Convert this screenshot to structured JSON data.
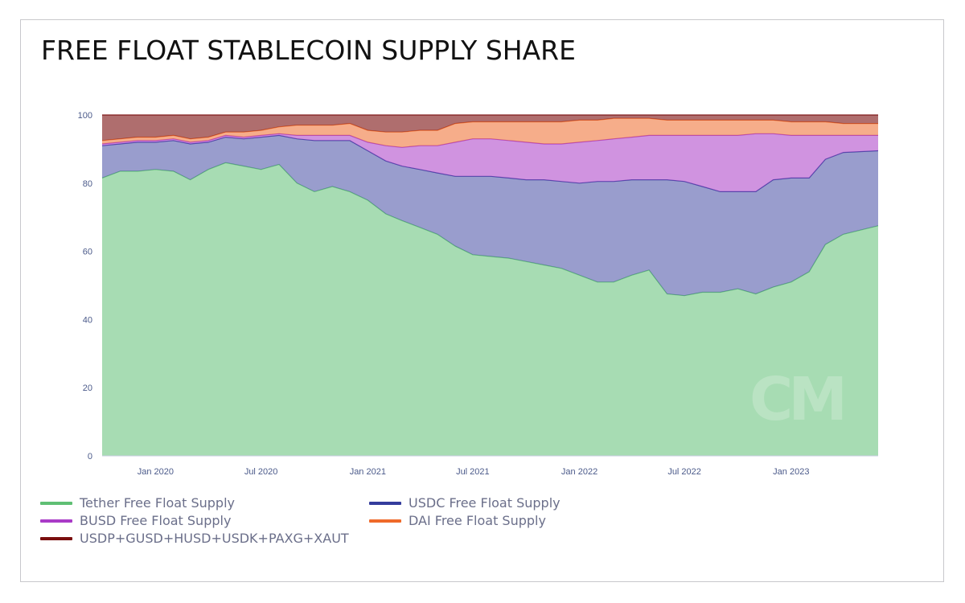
{
  "page": {
    "title": "FREE FLOAT STABLECOIN SUPPLY SHARE"
  },
  "watermark": "CM",
  "colors": {
    "tether": "#5fbf74",
    "usdc": "#343c9c",
    "busd": "#a93bc7",
    "dai": "#ef6a2a",
    "others": "#7a0e0e",
    "axis_text": "#4b5a8a"
  },
  "chart_data": {
    "type": "area",
    "stacked": true,
    "normalized_percent": true,
    "x": [
      "2019-10-01",
      "2019-11-01",
      "2019-12-01",
      "2020-01-01",
      "2020-02-01",
      "2020-03-01",
      "2020-04-01",
      "2020-05-01",
      "2020-06-01",
      "2020-07-01",
      "2020-08-01",
      "2020-09-01",
      "2020-10-01",
      "2020-11-01",
      "2020-12-01",
      "2021-01-01",
      "2021-02-01",
      "2021-03-01",
      "2021-04-01",
      "2021-05-01",
      "2021-06-01",
      "2021-07-01",
      "2021-08-01",
      "2021-09-01",
      "2021-10-01",
      "2021-11-01",
      "2021-12-01",
      "2022-01-01",
      "2022-02-01",
      "2022-03-01",
      "2022-04-01",
      "2022-05-01",
      "2022-06-01",
      "2022-07-01",
      "2022-08-01",
      "2022-09-01",
      "2022-10-01",
      "2022-11-01",
      "2022-12-01",
      "2023-01-01",
      "2023-02-01",
      "2023-03-01",
      "2023-04-01",
      "2023-05-01"
    ],
    "series": [
      {
        "name": "Tether Free Float Supply",
        "key": "tether",
        "values": [
          81.5,
          83.5,
          83.5,
          84.0,
          83.5,
          81.0,
          84.0,
          86.0,
          85.0,
          84.0,
          85.5,
          80.0,
          77.5,
          79.0,
          77.5,
          75.0,
          71.0,
          69.0,
          67.0,
          65.0,
          61.5,
          59.0,
          58.5,
          58.0,
          57.0,
          56.0,
          55.0,
          53.0,
          51.0,
          51.0,
          53.0,
          54.5,
          47.5,
          47.0,
          48.0,
          48.0,
          49.0,
          47.5,
          49.5,
          51.0,
          54.0,
          62.0,
          65.0,
          67.5
        ]
      },
      {
        "name": "USDC Free Float Supply",
        "key": "usdc",
        "values": [
          9.5,
          8.0,
          8.5,
          8.0,
          9.0,
          10.5,
          8.0,
          7.5,
          8.0,
          9.5,
          8.5,
          13.0,
          15.0,
          13.5,
          15.0,
          14.5,
          15.5,
          16.0,
          17.0,
          18.0,
          20.5,
          23.0,
          23.5,
          23.5,
          24.0,
          25.0,
          25.5,
          27.0,
          29.5,
          29.5,
          28.0,
          26.5,
          33.5,
          33.5,
          31.0,
          29.5,
          28.5,
          30.0,
          31.5,
          30.5,
          27.5,
          25.0,
          24.0,
          22.0
        ]
      },
      {
        "name": "BUSD Free Float Supply",
        "key": "busd",
        "values": [
          0.5,
          0.5,
          0.5,
          0.5,
          0.5,
          0.5,
          0.5,
          0.5,
          0.5,
          0.5,
          0.5,
          1.0,
          1.5,
          1.5,
          1.5,
          2.5,
          4.5,
          5.5,
          7.0,
          8.0,
          10.0,
          11.0,
          11.0,
          11.0,
          11.0,
          10.5,
          11.0,
          12.0,
          12.0,
          12.5,
          12.5,
          13.0,
          13.0,
          13.5,
          15.0,
          16.5,
          16.5,
          17.0,
          13.5,
          12.5,
          12.5,
          7.0,
          5.0,
          4.5
        ]
      },
      {
        "name": "DAI Free Float Supply",
        "key": "dai",
        "values": [
          1.0,
          1.0,
          1.0,
          1.0,
          1.0,
          1.0,
          1.0,
          1.0,
          1.5,
          1.5,
          2.0,
          3.0,
          3.0,
          3.0,
          3.5,
          3.5,
          4.0,
          4.5,
          4.5,
          4.5,
          5.5,
          5.0,
          5.0,
          5.5,
          6.0,
          6.5,
          6.5,
          6.5,
          6.0,
          6.0,
          5.5,
          5.0,
          4.5,
          4.5,
          4.5,
          4.5,
          4.5,
          4.0,
          4.0,
          4.0,
          4.0,
          4.0,
          3.5,
          3.5
        ]
      },
      {
        "name": "USDP+GUSD+HUSD+USDK+PAXG+XAUT",
        "key": "others",
        "values": [
          7.5,
          7.0,
          6.5,
          6.5,
          6.0,
          7.0,
          6.5,
          5.0,
          5.0,
          4.5,
          3.5,
          3.0,
          3.0,
          3.0,
          2.5,
          4.5,
          5.0,
          5.0,
          4.5,
          4.5,
          2.5,
          2.0,
          2.0,
          2.0,
          2.0,
          2.0,
          2.0,
          1.5,
          1.5,
          1.0,
          1.0,
          1.0,
          1.5,
          1.5,
          1.5,
          1.5,
          1.5,
          1.5,
          1.5,
          2.0,
          2.0,
          2.0,
          2.5,
          2.5
        ]
      }
    ],
    "ylim": [
      0,
      100
    ],
    "yticks": [
      "0",
      "20",
      "40",
      "60",
      "80",
      "100"
    ],
    "xticks": [
      {
        "label": "Jan 2020",
        "date": "2020-01-01"
      },
      {
        "label": "Jul 2020",
        "date": "2020-07-01"
      },
      {
        "label": "Jan 2021",
        "date": "2021-01-01"
      },
      {
        "label": "Jul 2021",
        "date": "2021-07-01"
      },
      {
        "label": "Jan 2022",
        "date": "2022-01-01"
      },
      {
        "label": "Jul 2022",
        "date": "2022-07-01"
      },
      {
        "label": "Jan 2023",
        "date": "2023-01-01"
      }
    ],
    "x_range": [
      "2019-10-01",
      "2023-05-31"
    ],
    "grid": false,
    "legend_position": "bottom"
  }
}
